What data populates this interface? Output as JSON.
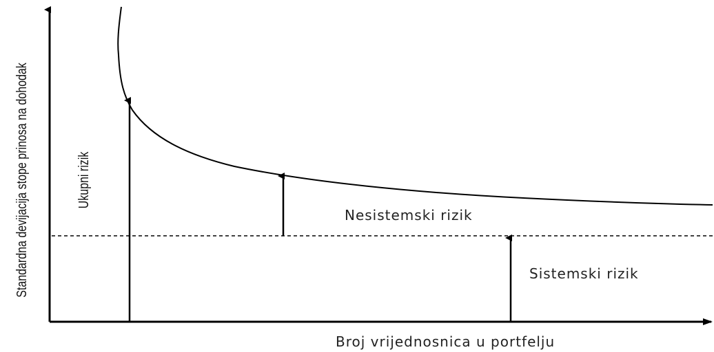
{
  "y_axis_label": "Standardna devijacija stope prinosa na dohodak",
  "x_axis_label": "Broj vrijednosnica u portfelju",
  "labels": {
    "total_risk": "Ukupni rizik",
    "unsystematic_risk": "Nesistemski rizik",
    "systematic_risk": "Sistemski rizik"
  }
}
